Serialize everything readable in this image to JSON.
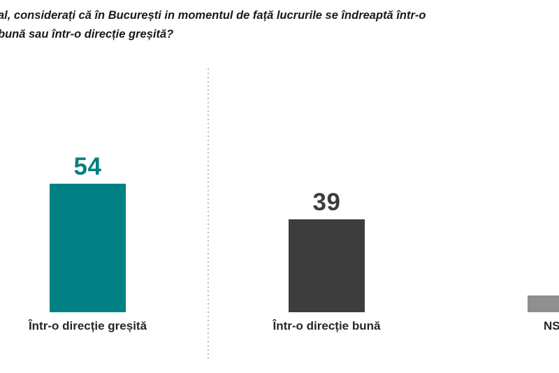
{
  "title": {
    "line1": "al, considerați că în București in momentul de față lucrurile se îndreaptă într-o",
    "line2": "bună sau într-o direcție greșită?"
  },
  "chart_data": {
    "type": "bar",
    "title": "al, considerați că în București in momentul de față lucrurile se îndreaptă într-o bună sau într-o direcție greșită?",
    "categories": [
      "Într-o direcție greșită",
      "Într-o direcție bună",
      "NS"
    ],
    "values": [
      54,
      39,
      7
    ],
    "value_labels_shown": [
      "54",
      "39",
      ""
    ],
    "bar_colors": [
      "#008083",
      "#3d3d3d",
      "#8f8f8f"
    ],
    "xlabel": "",
    "ylabel": "",
    "ylim": [
      0,
      60
    ],
    "grid": false,
    "legend": "none",
    "divider_between": [
      "Într-o direcție greșită",
      "Într-o direcție bună"
    ],
    "notes_layout": "third bar and NS label clipped at right edge; title clipped at left edge"
  },
  "colors": {
    "background": "#ffffff",
    "title_text": "#1a1a1a",
    "category_label_text": "#262626",
    "divider_dots": "#bdbdbd",
    "bar_gresita": "#008083",
    "bar_buna": "#3d3d3d",
    "bar_ns": "#8f8f8f"
  }
}
